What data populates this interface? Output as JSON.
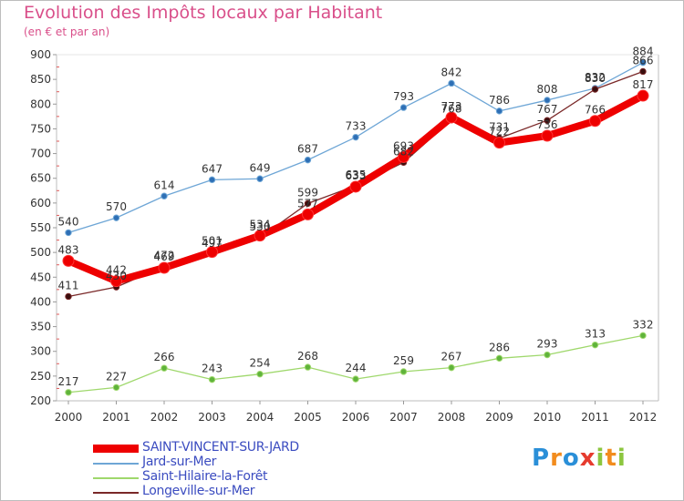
{
  "title": "Evolution des Impôts locaux par Habitant",
  "subtitle": "(en € et par an)",
  "logo": {
    "letters": [
      {
        "ch": "P",
        "color": "#2a8fd8"
      },
      {
        "ch": "r",
        "color": "#f28c1e"
      },
      {
        "ch": "o",
        "color": "#2a8fd8"
      },
      {
        "ch": "x",
        "color": "#e63b2e"
      },
      {
        "ch": "i",
        "color": "#8cc63f"
      },
      {
        "ch": "t",
        "color": "#f28c1e"
      },
      {
        "ch": "i",
        "color": "#8cc63f"
      }
    ]
  },
  "chart_data": {
    "type": "line",
    "x": [
      2000,
      2001,
      2002,
      2003,
      2004,
      2005,
      2006,
      2007,
      2008,
      2009,
      2010,
      2011,
      2012
    ],
    "ylim": [
      200,
      900
    ],
    "yticks": [
      200,
      250,
      300,
      350,
      400,
      450,
      500,
      550,
      600,
      650,
      700,
      750,
      800,
      850,
      900
    ],
    "grid": false,
    "legend_position": "bottom-left",
    "series": [
      {
        "name": "SAINT-VINCENT-SUR-JARD",
        "color": "#ee0000",
        "values": [
          483,
          442,
          469,
          501,
          534,
          577,
          633,
          693,
          773,
          722,
          736,
          766,
          817
        ]
      },
      {
        "name": "Jard-sur-Mer",
        "color": "#6ea6d6",
        "values": [
          540,
          570,
          614,
          647,
          649,
          687,
          733,
          793,
          842,
          786,
          808,
          832,
          884
        ]
      },
      {
        "name": "Saint-Hilaire-la-Forêt",
        "color": "#9fd86c",
        "values": [
          217,
          227,
          266,
          243,
          254,
          268,
          244,
          259,
          267,
          286,
          293,
          313,
          332
        ]
      },
      {
        "name": "Longeville-sur-Mer",
        "color": "#7a2828",
        "values": [
          411,
          430,
          472,
          497,
          530,
          599,
          635,
          682,
          768,
          731,
          767,
          830,
          866
        ]
      }
    ]
  }
}
